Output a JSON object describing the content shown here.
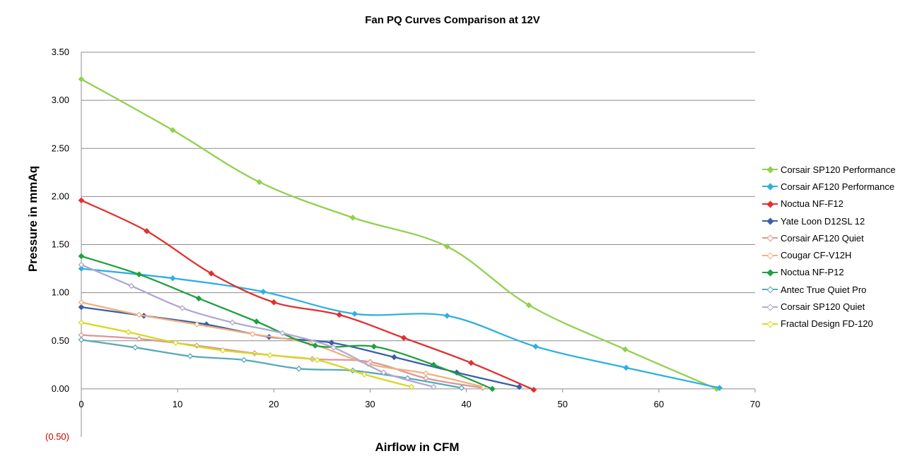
{
  "chart_data": {
    "type": "line",
    "title": "Fan PQ Curves Comparison at 12V",
    "xlabel": "Airflow in CFM",
    "ylabel": "Pressure in mmAq",
    "xlim": [
      0,
      70
    ],
    "ylim": [
      -0.5,
      3.5
    ],
    "x_ticks": [
      "0",
      "10",
      "20",
      "30",
      "40",
      "50",
      "60",
      "70"
    ],
    "y_ticks": [
      "(0.50)",
      "0.00",
      "0.50",
      "1.00",
      "1.50",
      "2.00",
      "2.50",
      "3.00",
      "3.50"
    ],
    "grid": "horizontal",
    "legend_position": "right",
    "series": [
      {
        "name": "Corsair SP120 Performance",
        "color": "#92d050",
        "points": [
          [
            0,
            3.22
          ],
          [
            9.5,
            2.69
          ],
          [
            18.5,
            2.15
          ],
          [
            28.2,
            1.78
          ],
          [
            38,
            1.48
          ],
          [
            46.5,
            0.87
          ],
          [
            56.5,
            0.41
          ],
          [
            66,
            0.0
          ]
        ]
      },
      {
        "name": "Corsair AF120 Performance",
        "color": "#2fb0e0",
        "points": [
          [
            0,
            1.25
          ],
          [
            9.5,
            1.15
          ],
          [
            18.9,
            1.01
          ],
          [
            28.4,
            0.78
          ],
          [
            38,
            0.76
          ],
          [
            47.2,
            0.44
          ],
          [
            56.6,
            0.22
          ],
          [
            66.3,
            0.01
          ]
        ]
      },
      {
        "name": "Noctua NF-F12",
        "color": "#e03030",
        "points": [
          [
            0,
            1.96
          ],
          [
            6.8,
            1.64
          ],
          [
            13.5,
            1.2
          ],
          [
            20,
            0.9
          ],
          [
            26.8,
            0.77
          ],
          [
            33.5,
            0.53
          ],
          [
            40.5,
            0.27
          ],
          [
            47,
            -0.01
          ]
        ]
      },
      {
        "name": "Yate Loon D12SL 12",
        "color": "#3a5ea8",
        "points": [
          [
            0,
            0.85
          ],
          [
            6.5,
            0.76
          ],
          [
            13,
            0.67
          ],
          [
            19.5,
            0.54
          ],
          [
            26,
            0.48
          ],
          [
            32.5,
            0.33
          ],
          [
            39,
            0.17
          ],
          [
            45.5,
            0.02
          ]
        ]
      },
      {
        "name": "Corsair AF120 Quiet",
        "color": "#d89898",
        "points": [
          [
            0,
            0.56
          ],
          [
            6,
            0.52
          ],
          [
            12,
            0.45
          ],
          [
            18,
            0.37
          ],
          [
            24,
            0.31
          ],
          [
            30,
            0.28
          ],
          [
            35.8,
            0.11
          ],
          [
            41.7,
            0.01
          ]
        ]
      },
      {
        "name": "Cougar CF-V12H",
        "color": "#f0b080",
        "points": [
          [
            0,
            0.9
          ],
          [
            6,
            0.77
          ],
          [
            12,
            0.67
          ],
          [
            17.8,
            0.57
          ],
          [
            23.8,
            0.47
          ],
          [
            29.8,
            0.26
          ],
          [
            35.8,
            0.16
          ],
          [
            41.8,
            0.02
          ]
        ]
      },
      {
        "name": "Noctua NF-P12",
        "color": "#20a040",
        "points": [
          [
            0,
            1.38
          ],
          [
            6,
            1.19
          ],
          [
            12.2,
            0.94
          ],
          [
            18.2,
            0.7
          ],
          [
            24.3,
            0.45
          ],
          [
            30.4,
            0.44
          ],
          [
            36.6,
            0.25
          ],
          [
            42.7,
            0.0
          ]
        ]
      },
      {
        "name": "Antec True Quiet Pro",
        "color": "#5aa8b8",
        "points": [
          [
            0,
            0.51
          ],
          [
            5.6,
            0.43
          ],
          [
            11.3,
            0.34
          ],
          [
            16.9,
            0.3
          ],
          [
            22.6,
            0.21
          ],
          [
            28.2,
            0.19
          ],
          [
            33.9,
            0.11
          ],
          [
            39.5,
            0.01
          ]
        ]
      },
      {
        "name": "Corsair SP120 Quiet",
        "color": "#b0a8d0",
        "points": [
          [
            0,
            1.29
          ],
          [
            5.2,
            1.07
          ],
          [
            10.5,
            0.84
          ],
          [
            15.7,
            0.69
          ],
          [
            20.9,
            0.58
          ],
          [
            26.2,
            0.43
          ],
          [
            31.4,
            0.17
          ],
          [
            36.6,
            0.02
          ]
        ]
      },
      {
        "name": "Fractal Design FD-120",
        "color": "#d8d820",
        "points": [
          [
            0,
            0.69
          ],
          [
            4.9,
            0.59
          ],
          [
            9.8,
            0.48
          ],
          [
            14.7,
            0.4
          ],
          [
            19.6,
            0.35
          ],
          [
            24.5,
            0.3
          ],
          [
            29.4,
            0.15
          ],
          [
            34.3,
            0.02
          ]
        ]
      }
    ]
  }
}
